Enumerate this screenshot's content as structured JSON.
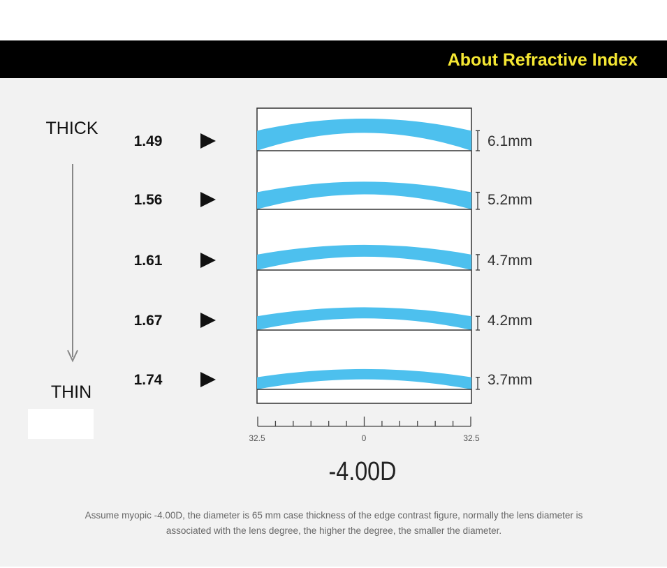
{
  "header": {
    "title": "About Refractive Index"
  },
  "direction": {
    "top": "THICK",
    "bottom": "THIN"
  },
  "lenses": [
    {
      "index": "1.49",
      "thickness": "6.1mm"
    },
    {
      "index": "1.56",
      "thickness": "5.2mm"
    },
    {
      "index": "1.61",
      "thickness": "4.7mm"
    },
    {
      "index": "1.67",
      "thickness": "4.2mm"
    },
    {
      "index": "1.74",
      "thickness": "3.7mm"
    }
  ],
  "scale": {
    "left": "32.5",
    "center": "0",
    "right": "32.5"
  },
  "power": "-4.00D",
  "footnote": "Assume myopic -4.00D, the diameter is 65 mm case thickness of the edge contrast figure, normally the lens diameter is associated with the lens degree, the higher the degree, the smaller the diameter."
}
